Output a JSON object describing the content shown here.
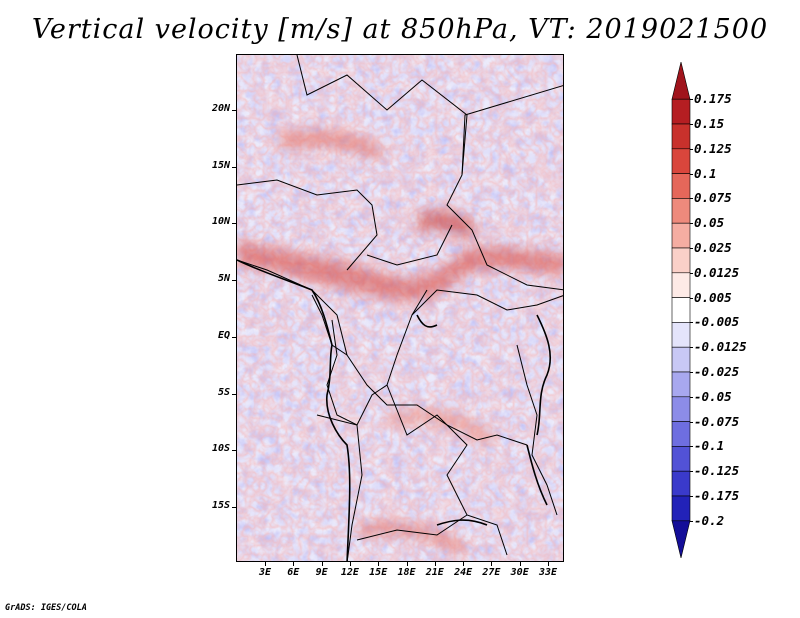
{
  "title": "Vertical velocity [m/s] at 850hPa, VT: 2019021500",
  "footer": "GrADS: IGES/COLA",
  "map": {
    "latitude_labels": [
      "20N",
      "15N",
      "10N",
      "5N",
      "EQ",
      "5S",
      "10S",
      "15S"
    ],
    "longitude_labels": [
      "3E",
      "6E",
      "9E",
      "12E",
      "15E",
      "18E",
      "21E",
      "24E",
      "27E",
      "30E",
      "33E"
    ],
    "field": "vertical velocity",
    "level": "850hPa",
    "units": "m/s",
    "valid_time": "2019021500"
  },
  "colorbar": {
    "levels": [
      "0.175",
      "0.15",
      "0.125",
      "0.1",
      "0.075",
      "0.05",
      "0.025",
      "0.0125",
      "0.005",
      "-0.005",
      "-0.0125",
      "-0.025",
      "-0.05",
      "-0.075",
      "-0.1",
      "-0.125",
      "-0.175",
      "-0.2"
    ],
    "colors": [
      "#a0141c",
      "#b51e22",
      "#c8312c",
      "#d9463c",
      "#e5675a",
      "#ee8a7c",
      "#f5ada2",
      "#fad0c8",
      "#fdeae6",
      "#ffffff",
      "#e4e4fb",
      "#c8c8f5",
      "#a8a8ef",
      "#8c8ce8",
      "#6e6ee0",
      "#5252d6",
      "#3a3acb",
      "#2222b8",
      "#140e98"
    ]
  }
}
